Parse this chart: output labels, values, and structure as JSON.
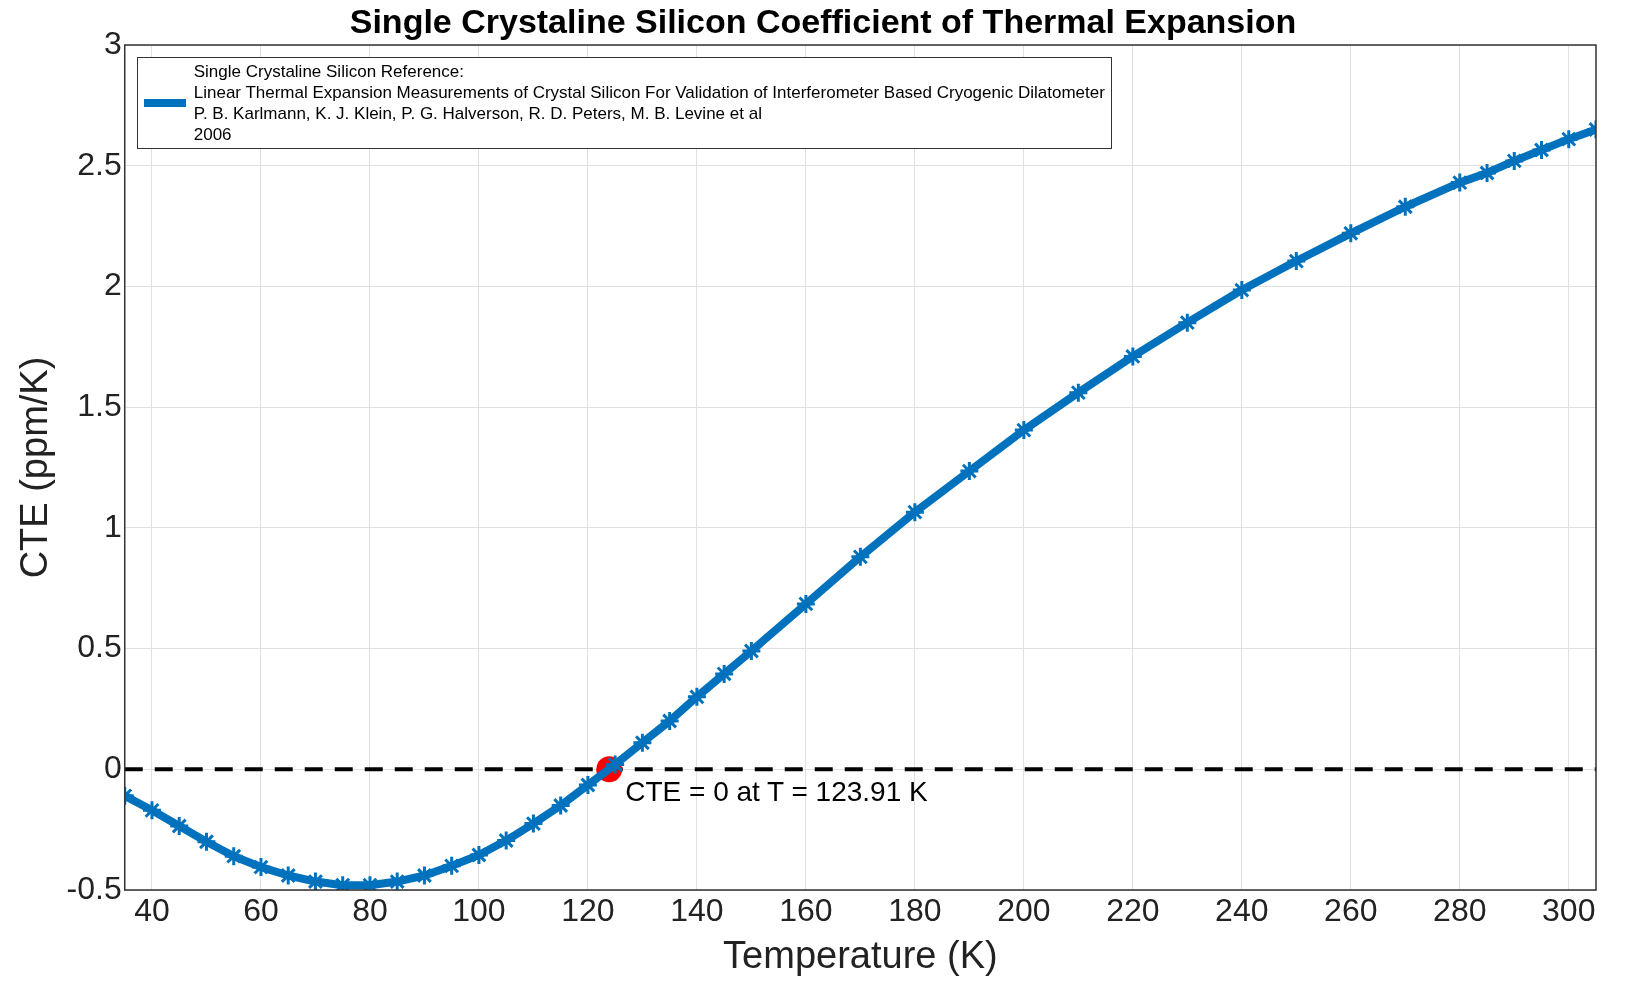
{
  "chart_data": {
    "type": "line",
    "title": "Single Crystaline Silicon Coefficient of Thermal Expansion",
    "xlabel": "Temperature (K)",
    "ylabel": "CTE (ppm/K)",
    "x": [
      35,
      40,
      45,
      50,
      55,
      60,
      65,
      70,
      75,
      80,
      85,
      90,
      95,
      100,
      105,
      110,
      115,
      120,
      125,
      130,
      135,
      140,
      145,
      150,
      160,
      170,
      180,
      190,
      200,
      210,
      220,
      230,
      240,
      250,
      260,
      270,
      280,
      285,
      290,
      295,
      300,
      305
    ],
    "series": [
      {
        "name": "Single Crystaline Silicon Reference:\nLinear Thermal Expansion Measurements of Crystal Silicon For Validation of Interferometer Based Cryogenic Dilatometer\nP. B. Karlmann, K. J. Klein, P. G. Halverson, R. D. Peters, M. B. Levine et al\n2006",
        "color": "#0072bd",
        "marker": "cross",
        "values": [
          -0.11,
          -0.17,
          -0.235,
          -0.3,
          -0.36,
          -0.405,
          -0.44,
          -0.465,
          -0.48,
          -0.48,
          -0.465,
          -0.44,
          -0.4,
          -0.355,
          -0.295,
          -0.225,
          -0.15,
          -0.065,
          0.02,
          0.11,
          0.2,
          0.3,
          0.395,
          0.49,
          0.685,
          0.88,
          1.065,
          1.235,
          1.405,
          1.56,
          1.71,
          1.85,
          1.985,
          2.105,
          2.22,
          2.33,
          2.43,
          2.47,
          2.52,
          2.565,
          2.61,
          2.65
        ]
      },
      {
        "type": "scatter",
        "color": "#ff0000",
        "marker": "circle",
        "x": [
          123.91
        ],
        "values": [
          0
        ]
      }
    ],
    "xlim": [
      35,
      305
    ],
    "xticks": [
      40,
      60,
      80,
      100,
      120,
      140,
      160,
      180,
      200,
      220,
      240,
      260,
      280,
      300
    ],
    "ylim": [
      -0.5,
      3
    ],
    "yticks": [
      -0.5,
      0,
      0.5,
      1,
      1.5,
      2,
      2.5,
      3
    ],
    "ref_lines": [
      {
        "axis": "y",
        "value": 0,
        "color": "#000000",
        "line_style": "dashed"
      }
    ],
    "annotations": [
      {
        "text": "CTE = 0 at T = 123.91 K",
        "x": 123.91,
        "y": 0
      }
    ],
    "grid": true,
    "legend": "top left"
  }
}
